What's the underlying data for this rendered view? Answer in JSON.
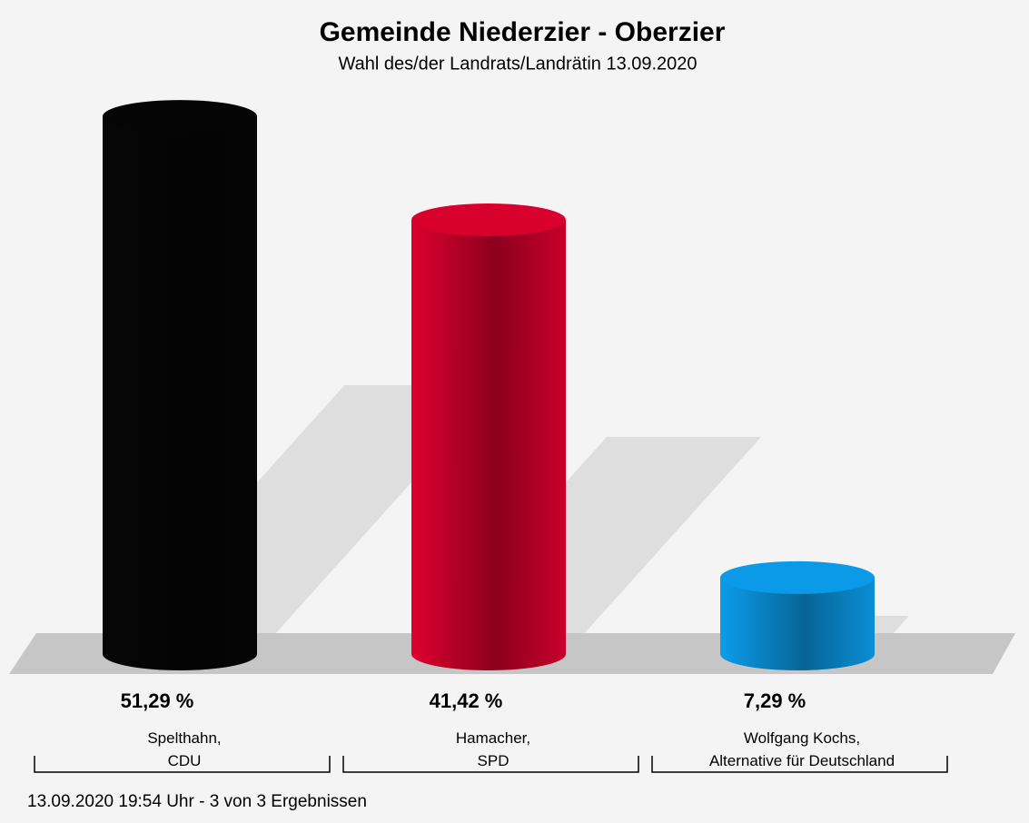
{
  "chart_data": {
    "type": "bar",
    "title": "Gemeinde Niederzier - Oberzier",
    "subtitle": "Wahl des/der Landrats/Landrätin 13.09.2020",
    "categories": [
      "Spelthahn,\nCDU",
      "Hamacher,\nSPD",
      "Wolfgang Kochs,\nAlternative für Deutschland"
    ],
    "values": [
      51.29,
      41.42,
      7.29
    ],
    "value_labels": [
      "51,29 %",
      "41,42 %",
      "7,29 %"
    ],
    "colors": [
      "#050505",
      "#c8002a",
      "#0a8fd6"
    ],
    "footer": "13.09.2020 19:54 Uhr - 3 von 3 Ergebnissen"
  }
}
